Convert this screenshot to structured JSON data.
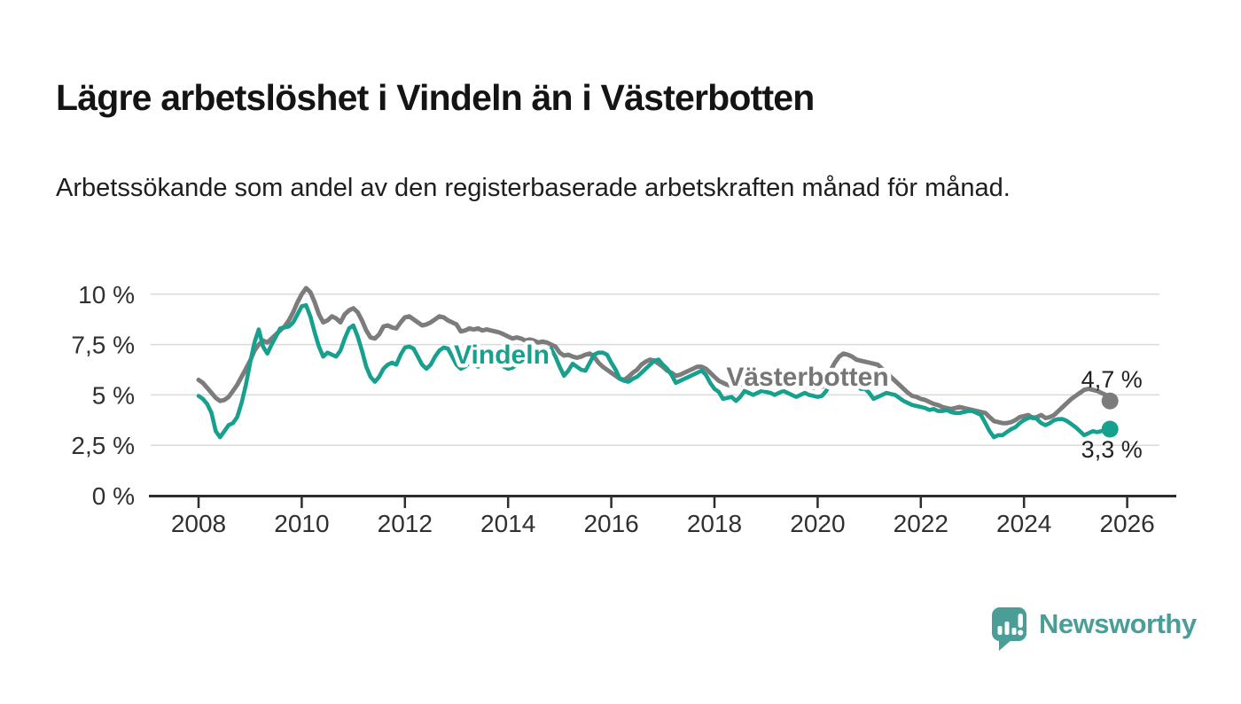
{
  "header": {
    "title": "Lägre arbetslöshet i Vindeln än i Västerbotten",
    "subtitle": "Arbetssökande som andel av den registerbaserade arbetskraften månad för månad."
  },
  "branding": {
    "name": "Newsworthy",
    "logo_icon": "speech-bubble-bar-chart",
    "color": "#4a9e97"
  },
  "chart_data": {
    "type": "line",
    "unit": "percent",
    "frequency": "monthly",
    "start": "2008-01",
    "end": "2025-09",
    "grid": "horizontal",
    "ylim": [
      0,
      10.6
    ],
    "y_ticks": {
      "values": [
        0,
        2.5,
        5,
        7.5,
        10
      ],
      "labels": [
        "0 %",
        "2,5 %",
        "5 %",
        "7,5 %",
        "10 %"
      ]
    },
    "x_ticks": [
      2008,
      2010,
      2012,
      2014,
      2016,
      2018,
      2020,
      2022,
      2024,
      2026
    ],
    "colors": {
      "vindeln": "#17a08e",
      "vasterbotten": "#7c7c7c",
      "gridline": "#dadada",
      "axis": "#2d2d2d",
      "tick_text": "#303030",
      "end_label_text": "#222222"
    },
    "series": [
      {
        "name": "Västerbotten",
        "color": "#7c7c7c",
        "label_color": "#767676",
        "end_label": "4,7 %",
        "end_value": 4.7,
        "values": [
          5.75,
          5.6,
          5.35,
          5.1,
          4.85,
          4.7,
          4.75,
          4.9,
          5.2,
          5.5,
          5.9,
          6.3,
          6.7,
          7.2,
          7.5,
          7.7,
          7.6,
          7.8,
          8.0,
          8.2,
          8.4,
          8.7,
          9.1,
          9.6,
          10.0,
          10.3,
          10.1,
          9.6,
          9.0,
          8.6,
          8.7,
          8.9,
          8.8,
          8.6,
          9.0,
          9.2,
          9.3,
          9.1,
          8.7,
          8.2,
          7.85,
          7.8,
          8.0,
          8.4,
          8.45,
          8.35,
          8.3,
          8.6,
          8.85,
          8.9,
          8.75,
          8.6,
          8.45,
          8.5,
          8.6,
          8.75,
          8.9,
          8.85,
          8.7,
          8.6,
          8.5,
          8.15,
          8.2,
          8.3,
          8.25,
          8.3,
          8.2,
          8.25,
          8.2,
          8.15,
          8.1,
          8.0,
          7.9,
          7.8,
          7.85,
          7.8,
          7.7,
          7.75,
          7.7,
          7.6,
          7.65,
          7.6,
          7.5,
          7.4,
          7.1,
          6.95,
          7.0,
          6.9,
          6.85,
          6.9,
          7.0,
          7.05,
          6.9,
          6.6,
          6.4,
          6.25,
          6.1,
          5.95,
          5.8,
          5.75,
          5.9,
          6.1,
          6.25,
          6.5,
          6.65,
          6.75,
          6.7,
          6.55,
          6.4,
          6.2,
          6.1,
          5.95,
          6.0,
          6.1,
          6.2,
          6.3,
          6.4,
          6.4,
          6.3,
          6.1,
          5.9,
          5.7,
          5.6,
          5.5,
          5.45,
          5.4,
          5.5,
          5.6,
          5.7,
          5.75,
          5.7,
          5.6,
          5.55,
          5.5,
          5.45,
          5.5,
          5.55,
          5.6,
          5.65,
          5.6,
          5.5,
          5.45,
          5.4,
          5.35,
          5.4,
          5.4,
          5.6,
          6.2,
          6.6,
          6.9,
          7.05,
          7.0,
          6.9,
          6.75,
          6.7,
          6.65,
          6.6,
          6.55,
          6.5,
          6.3,
          6.1,
          5.9,
          5.7,
          5.5,
          5.3,
          5.1,
          4.95,
          4.9,
          4.8,
          4.75,
          4.65,
          4.55,
          4.5,
          4.4,
          4.35,
          4.3,
          4.35,
          4.4,
          4.35,
          4.3,
          4.25,
          4.2,
          4.15,
          4.1,
          3.9,
          3.7,
          3.65,
          3.6,
          3.6,
          3.65,
          3.75,
          3.9,
          3.95,
          4.0,
          3.85,
          3.9,
          4.0,
          3.85,
          3.9,
          4.0,
          4.2,
          4.4,
          4.6,
          4.8,
          4.95,
          5.1,
          5.25,
          5.3,
          5.25,
          5.2,
          5.1,
          5.0,
          4.7
        ]
      },
      {
        "name": "Vindeln",
        "color": "#17a08e",
        "label_color": "#17a08e",
        "end_label": "3,3 %",
        "end_value": 3.3,
        "values": [
          4.95,
          4.8,
          4.55,
          4.1,
          3.2,
          2.9,
          3.2,
          3.5,
          3.6,
          3.9,
          4.6,
          5.5,
          6.6,
          7.6,
          8.25,
          7.4,
          7.05,
          7.5,
          7.9,
          8.3,
          8.35,
          8.4,
          8.6,
          9.0,
          9.4,
          9.45,
          8.9,
          8.1,
          7.4,
          6.9,
          7.1,
          7.0,
          6.9,
          7.2,
          7.8,
          8.3,
          8.45,
          7.9,
          7.2,
          6.4,
          5.9,
          5.65,
          5.9,
          6.3,
          6.5,
          6.6,
          6.5,
          7.0,
          7.35,
          7.4,
          7.3,
          6.9,
          6.5,
          6.3,
          6.5,
          6.9,
          7.2,
          7.35,
          7.3,
          6.9,
          6.5,
          6.3,
          6.4,
          6.6,
          6.5,
          6.4,
          6.6,
          6.8,
          6.6,
          6.5,
          6.6,
          6.4,
          6.3,
          6.35,
          6.5,
          6.6,
          6.55,
          6.5,
          6.7,
          6.9,
          7.0,
          7.1,
          7.3,
          6.9,
          6.4,
          5.95,
          6.2,
          6.55,
          6.4,
          6.25,
          6.2,
          6.6,
          7.0,
          7.1,
          7.1,
          7.0,
          6.6,
          6.25,
          5.8,
          5.7,
          5.65,
          5.8,
          5.9,
          6.1,
          6.3,
          6.5,
          6.7,
          6.75,
          6.5,
          6.3,
          6.0,
          5.6,
          5.7,
          5.8,
          5.9,
          6.0,
          6.1,
          6.2,
          6.0,
          5.6,
          5.3,
          5.15,
          4.8,
          4.85,
          4.9,
          4.7,
          4.9,
          5.2,
          5.1,
          5.0,
          5.1,
          5.2,
          5.15,
          5.1,
          5.0,
          5.1,
          5.2,
          5.1,
          5.0,
          4.9,
          5.0,
          5.1,
          5.0,
          4.95,
          4.9,
          4.95,
          5.2,
          5.6,
          5.8,
          5.9,
          5.9,
          5.8,
          5.7,
          5.5,
          5.3,
          5.3,
          5.1,
          4.8,
          4.9,
          5.0,
          5.1,
          5.05,
          5.0,
          4.85,
          4.7,
          4.6,
          4.5,
          4.45,
          4.4,
          4.35,
          4.25,
          4.3,
          4.2,
          4.2,
          4.25,
          4.15,
          4.1,
          4.1,
          4.15,
          4.2,
          4.2,
          4.1,
          4.0,
          3.6,
          3.2,
          2.9,
          3.0,
          3.0,
          3.15,
          3.3,
          3.4,
          3.6,
          3.75,
          3.85,
          3.9,
          3.8,
          3.6,
          3.5,
          3.6,
          3.75,
          3.8,
          3.8,
          3.7,
          3.55,
          3.4,
          3.2,
          3.0,
          3.1,
          3.2,
          3.15,
          3.2,
          3.3,
          3.3
        ]
      }
    ]
  }
}
